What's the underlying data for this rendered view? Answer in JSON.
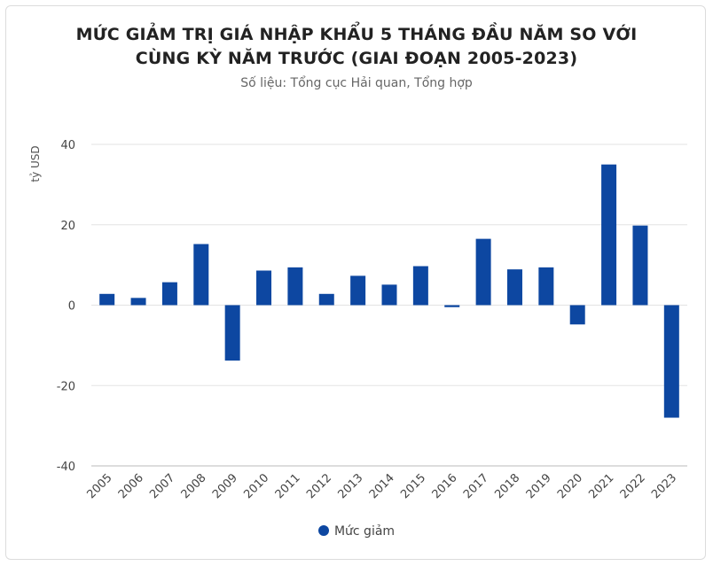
{
  "chart_data": {
    "type": "bar",
    "title_line1": "MỨC GIẢM TRỊ GIÁ NHẬP KHẨU 5 THÁNG ĐẦU NĂM SO VỚI",
    "title_line2": "CÙNG KỲ NĂM TRƯỚC (GIAI ĐOẠN 2005-2023)",
    "subtitle": "Số liệu: Tổng cục Hải quan, Tổng hợp",
    "ylabel": "tỷ USD",
    "xlabel": "",
    "ylim": [
      -40,
      40
    ],
    "yticks": [
      40,
      20,
      0,
      -20,
      -40
    ],
    "ytick_labels": [
      "40",
      "20",
      "0",
      "-20",
      "-40"
    ],
    "grid": true,
    "legend_position": "bottom",
    "categories": [
      "2005",
      "2006",
      "2007",
      "2008",
      "2009",
      "2010",
      "2011",
      "2012",
      "2013",
      "2014",
      "2015",
      "2016",
      "2017",
      "2018",
      "2019",
      "2020",
      "2021",
      "2022",
      "2023"
    ],
    "series": [
      {
        "name": "Mức giảm",
        "color": "#0d47a1",
        "values": [
          2.8,
          1.8,
          5.7,
          15.2,
          -13.8,
          8.6,
          9.4,
          2.8,
          7.3,
          5.1,
          9.7,
          -0.5,
          16.5,
          8.9,
          9.4,
          -4.8,
          35.0,
          19.8,
          -28.0
        ]
      }
    ]
  }
}
